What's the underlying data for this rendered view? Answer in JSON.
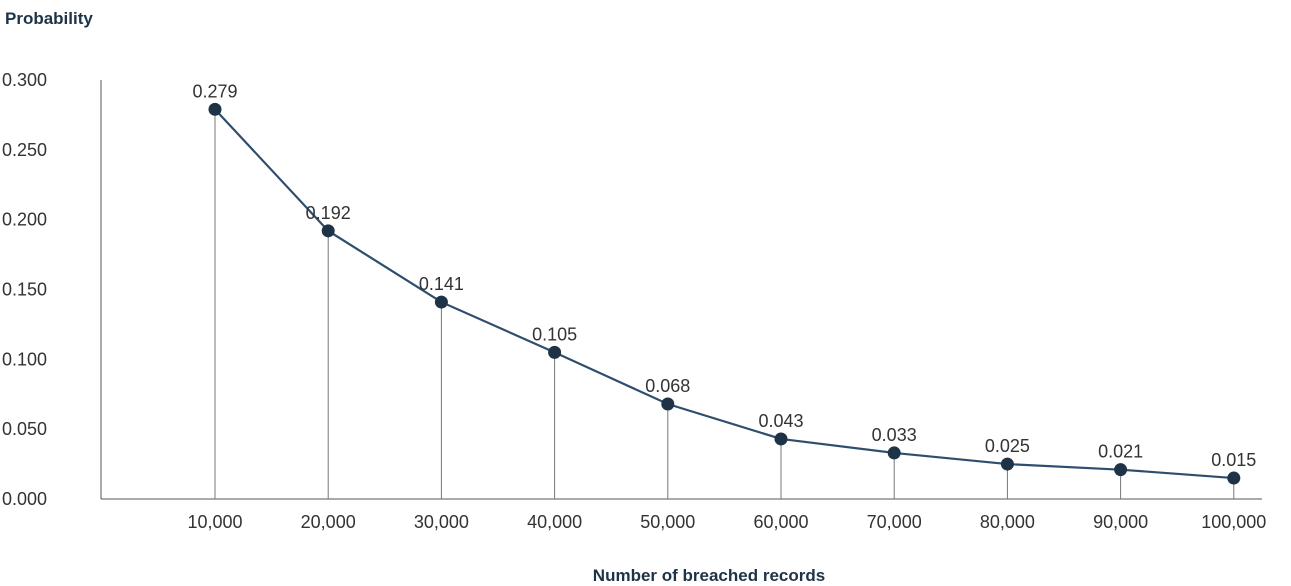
{
  "chart_data": {
    "type": "line",
    "title": "",
    "xlabel": "Number of breached records",
    "ylabel": "Probability",
    "x": [
      10000,
      20000,
      30000,
      40000,
      50000,
      60000,
      70000,
      80000,
      90000,
      100000
    ],
    "x_tick_labels": [
      "10,000",
      "20,000",
      "30,000",
      "40,000",
      "50,000",
      "60,000",
      "70,000",
      "80,000",
      "90,000",
      "100,000"
    ],
    "y_tick_labels": [
      "0.000",
      "0.050",
      "0.100",
      "0.150",
      "0.200",
      "0.250",
      "0.300"
    ],
    "ylim": [
      0,
      0.3
    ],
    "grid": false,
    "legend": "none",
    "series": [
      {
        "values": [
          0.279,
          0.192,
          0.141,
          0.105,
          0.068,
          0.043,
          0.033,
          0.025,
          0.021,
          0.015
        ],
        "labels": [
          "0.279",
          "0.192",
          "0.141",
          "0.105",
          "0.068",
          "0.043",
          "0.033",
          "0.025",
          "0.021",
          "0.015"
        ],
        "color": "#2e4e6e",
        "marker_color": "#1e3346"
      }
    ]
  }
}
